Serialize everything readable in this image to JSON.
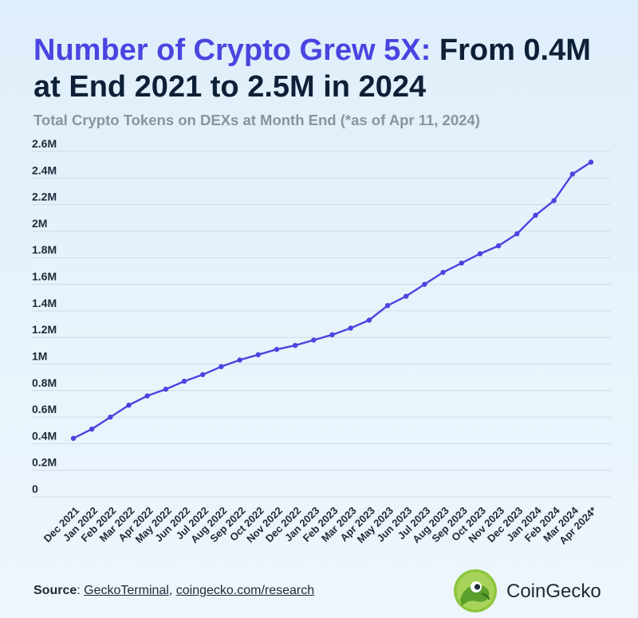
{
  "header": {
    "title_highlight": "Number of Crypto Grew 5X:",
    "title_rest": " From 0.4M at End 2021 to 2.5M in 2024",
    "subtitle": "Total Crypto Tokens on DEXs at Month End (*as of Apr 11, 2024)"
  },
  "chart_data": {
    "type": "line",
    "title": "Number of Crypto Grew 5X: From 0.4M at End 2021 to 2.5M in 2024",
    "subtitle": "Total Crypto Tokens on DEXs at Month End (*as of Apr 11, 2024)",
    "xlabel": "",
    "ylabel": "",
    "categories": [
      "Dec 2021",
      "Jan 2022",
      "Feb 2022",
      "Mar 2022",
      "Apr 2022",
      "May 2022",
      "Jun 2022",
      "Jul 2022",
      "Aug 2022",
      "Sep 2022",
      "Oct 2022",
      "Nov 2022",
      "Dec 2022",
      "Jan 2023",
      "Feb 2023",
      "Mar 2023",
      "Apr 2023",
      "May 2023",
      "Jun 2023",
      "Jul 2023",
      "Aug 2023",
      "Sep 2023",
      "Oct 2023",
      "Nov 2023",
      "Dec 2023",
      "Jan 2024",
      "Feb 2024",
      "Mar 2024",
      "Apr 2024*"
    ],
    "series": [
      {
        "values": [
          0.44,
          0.51,
          0.6,
          0.69,
          0.76,
          0.81,
          0.87,
          0.92,
          0.98,
          1.03,
          1.07,
          1.11,
          1.14,
          1.18,
          1.22,
          1.27,
          1.33,
          1.44,
          1.51,
          1.6,
          1.69,
          1.76,
          1.83,
          1.89,
          1.98,
          2.12,
          2.23,
          2.43,
          2.52
        ]
      }
    ],
    "y_ticks": [
      0,
      0.2,
      0.4,
      0.6,
      0.8,
      1,
      1.2,
      1.4,
      1.6,
      1.8,
      2,
      2.2,
      2.4,
      2.6
    ],
    "y_tick_labels": [
      "0",
      "0.2M",
      "0.4M",
      "0.6M",
      "0.8M",
      "1M",
      "1.2M",
      "1.4M",
      "1.6M",
      "1.8M",
      "2M",
      "2.2M",
      "2.4M",
      "2.6M"
    ],
    "ylim": [
      0,
      2.6
    ],
    "grid": true,
    "line_color": "#4a45e0"
  },
  "footer": {
    "source_label": "Source",
    "source_sep": ": ",
    "source_link1": "GeckoTerminal",
    "source_comma": ", ",
    "source_link2": "coingecko.com/research",
    "brand_name": "CoinGecko"
  },
  "colors": {
    "accent": "#4a45e0",
    "title_dark": "#0d2036",
    "subtitle_gray": "#8c939b",
    "logo_green": "#8dc63f"
  }
}
